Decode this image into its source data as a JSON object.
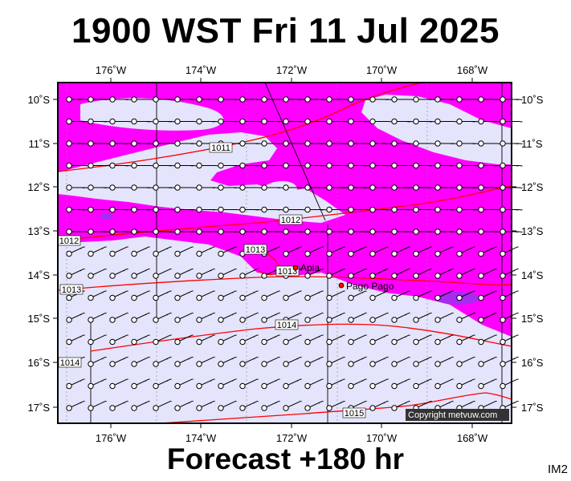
{
  "title": "1900 WST Fri 11 Jul 2025",
  "footer": "Forecast +180 hr",
  "code": "IM2",
  "copyright": "Copyright metvuw.com",
  "colors": {
    "frame": "#000000",
    "ocean": "#e4e4fc",
    "moisture": "#ff00ff",
    "moisture_dark": "#9933ee",
    "isobar": "#ff0000",
    "wind_barb": "#000000"
  },
  "axes": {
    "lon_ticks": [
      "176˚W",
      "174˚W",
      "172˚W",
      "170˚W",
      "168˚W"
    ],
    "lat_ticks": [
      "10˚S",
      "11˚S",
      "12˚S",
      "13˚S",
      "14˚S",
      "15˚S",
      "16˚S",
      "17˚S"
    ]
  },
  "isobar_labels": [
    "1011",
    "1012",
    "1012",
    "1013",
    "1013",
    "1013",
    "1014",
    "1014",
    "1015"
  ],
  "places": [
    "Apia",
    "Pago Pago"
  ],
  "icons": [
    "wind-barb-icon",
    "station-circle-icon",
    "place-marker-icon"
  ]
}
